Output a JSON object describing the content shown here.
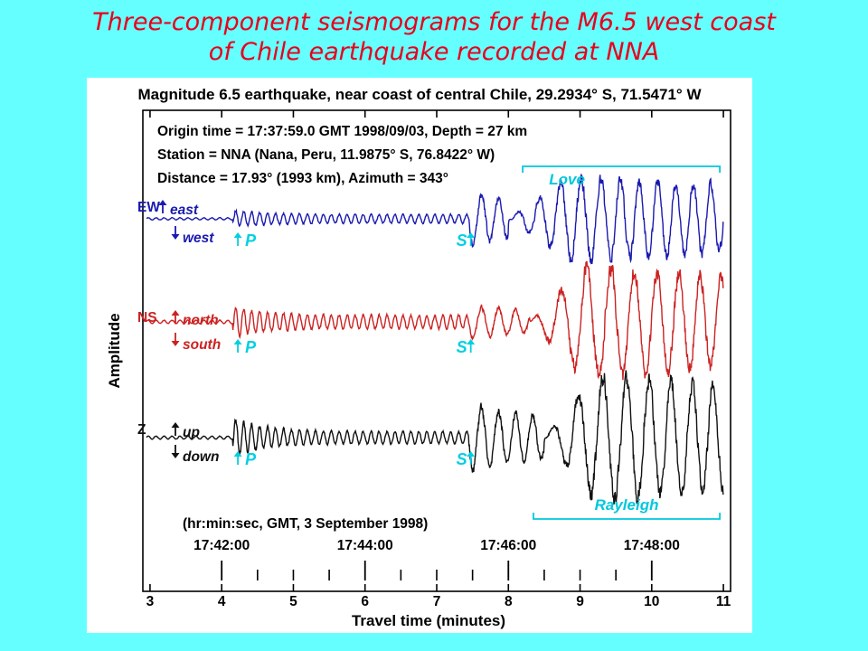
{
  "slide": {
    "title_line1": "Three-component seismograms for the M6.5 west coast",
    "title_line2": "of Chile earthquake recorded at NNA",
    "title_color": "#e8001c",
    "background": "#66ffff"
  },
  "chart_data": {
    "type": "line",
    "title": "Magnitude 6.5 earthquake, near coast of central Chile, 29.2934° S, 71.5471° W",
    "info_lines": [
      "Origin time = 17:37:59.0 GMT 1998/09/03, Depth = 27 km",
      "Station = NNA (Nana, Peru, 11.9875° S, 76.8422° W)",
      "Distance = 17.93° (1993 km), Azimuth = 343°"
    ],
    "xlabel": "Travel time (minutes)",
    "ylabel": "Amplitude",
    "xlim": [
      2.9,
      11.1
    ],
    "x_ticks": [
      3,
      4,
      5,
      6,
      7,
      8,
      9,
      10,
      11
    ],
    "gmt_caption": "(hr:min:sec, GMT, 3 September 1998)",
    "gmt_ticks": [
      {
        "x": 4,
        "label": "17:42:00"
      },
      {
        "x": 6,
        "label": "17:44:00"
      },
      {
        "x": 8,
        "label": "17:46:00"
      },
      {
        "x": 10,
        "label": "17:48:00"
      }
    ],
    "gmt_minor_ticks": [
      4.5,
      5.0,
      5.5,
      6.5,
      7.0,
      7.5,
      8.5,
      9.0,
      9.5
    ],
    "phase_colors": {
      "p_s": "#00d0e0",
      "surface": "#00c8dc"
    },
    "series": [
      {
        "name": "EW",
        "up_label": "east",
        "down_label": "west",
        "color": "#1a1ab0",
        "p_label": "P",
        "s_label": "S",
        "p_arrival": 4.15,
        "s_arrival": 7.45,
        "start": 2.95,
        "noise": 0.1,
        "p_amp": 0.1,
        "s_amp": 0.6,
        "surface_amp": 1.0,
        "surface_start": 8.0,
        "surface_end": 11.0,
        "freq": 3.2
      },
      {
        "name": "NS",
        "up_label": "north",
        "down_label": "south",
        "color": "#cc2222",
        "p_label": "P",
        "s_label": "S",
        "p_arrival": 4.15,
        "s_arrival": 7.45,
        "start": 2.95,
        "noise": 0.12,
        "p_amp": 0.15,
        "s_amp": 0.3,
        "surface_amp": 1.05,
        "surface_start": 8.3,
        "surface_end": 11.0,
        "freq": 2.6
      },
      {
        "name": "Z",
        "up_label": "up",
        "down_label": "down",
        "color": "#111111",
        "p_label": "P",
        "s_label": "S",
        "p_arrival": 4.15,
        "s_arrival": 7.45,
        "start": 2.95,
        "noise": 0.1,
        "p_amp": 0.22,
        "s_amp": 0.55,
        "surface_amp": 1.1,
        "surface_start": 8.5,
        "surface_end": 11.0,
        "freq": 2.7
      }
    ],
    "annotations": [
      {
        "label": "Love",
        "x_start": 8.2,
        "x_end": 10.95,
        "position": "above EW"
      },
      {
        "label": "Rayleigh",
        "x_start": 8.35,
        "x_end": 10.95,
        "position": "below Z"
      }
    ]
  }
}
